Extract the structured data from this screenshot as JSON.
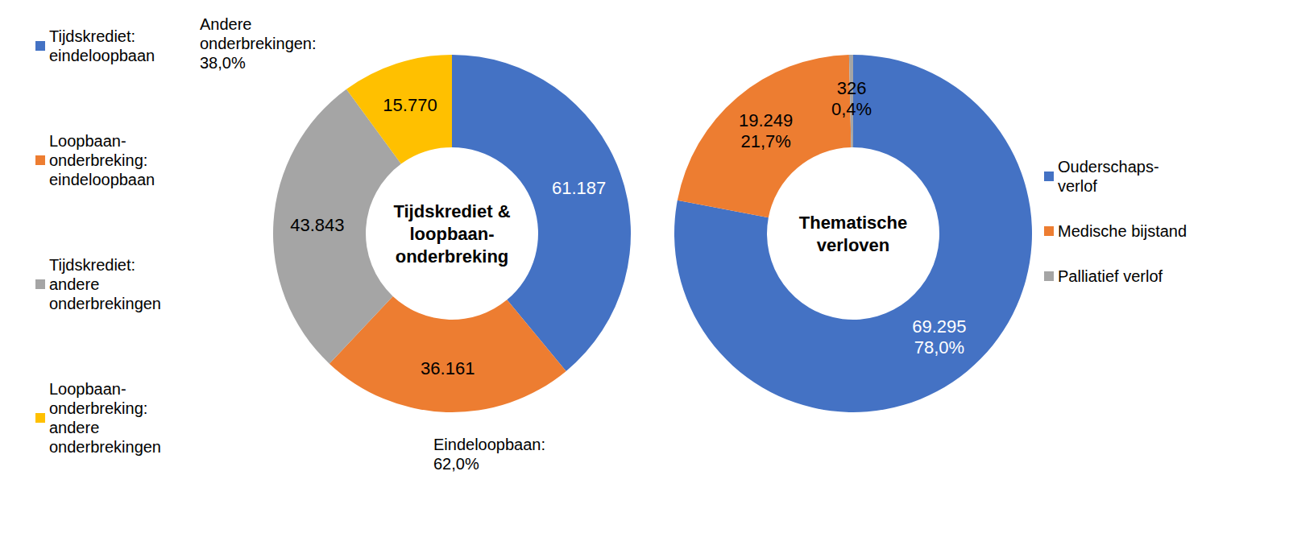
{
  "chart_data": [
    {
      "type": "pie",
      "title": "Tijdskrediet &\nloopbaan-\nonderbreking",
      "categories": [
        "Tijdskrediet:\neindeloopbaan",
        "Loopbaan-\nonderbreking:\neindeloopbaan",
        "Tijdskrediet:\nandere\nonderbrekingen",
        "Loopbaan-\nonderbreking:\nandere\nonderbrekingen"
      ],
      "values": [
        61187,
        36161,
        43843,
        15770
      ],
      "value_labels": [
        "61.187",
        "36.161",
        "43.843",
        "15.770"
      ],
      "colors": [
        "#4472c4",
        "#ed7d31",
        "#a5a5a5",
        "#ffc000"
      ],
      "annotations": [
        "Andere\nonderbrekingen:\n38,0%",
        "Eindeloopbaan:\n62,0%"
      ],
      "data_labels": true,
      "legend": "left"
    },
    {
      "type": "pie",
      "title": "Thematische\nverloven",
      "categories": [
        "Ouderschaps-\nverlof",
        "Medische bijstand",
        "Palliatief verlof"
      ],
      "values": [
        69295,
        19249,
        326
      ],
      "value_labels": [
        "69.295\n78,0%",
        "19.249\n21,7%",
        "326\n0,4%"
      ],
      "colors": [
        "#4472c4",
        "#ed7d31",
        "#a5a5a5"
      ],
      "data_labels": true,
      "legend": "right"
    }
  ]
}
